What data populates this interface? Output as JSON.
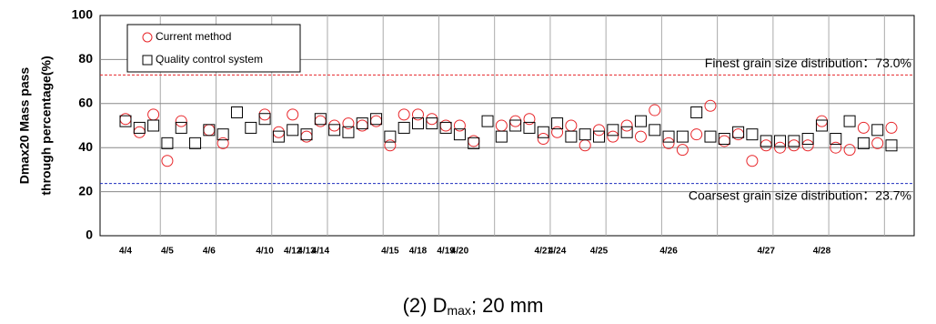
{
  "chart_data": {
    "type": "scatter",
    "y_label_lines": [
      "Dmax20 Mass pass",
      "through percentage(%)"
    ],
    "caption": {
      "prefix": "(2) D",
      "sub": "max",
      "suffix": "; 20 mm"
    },
    "categories": [
      "4/4",
      null,
      null,
      "4/5",
      null,
      null,
      "4/6",
      null,
      null,
      null,
      "4/10",
      null,
      "4/12",
      "4/13",
      "4/14",
      null,
      null,
      null,
      null,
      "4/15",
      null,
      "4/18",
      null,
      "4/19",
      "4/20",
      null,
      null,
      null,
      null,
      null,
      "4/21",
      "4/24",
      null,
      null,
      "4/25",
      null,
      null,
      null,
      null,
      "4/26",
      null,
      null,
      null,
      null,
      null,
      null,
      "4/27",
      null,
      null,
      null,
      "4/28",
      null,
      null,
      null,
      null,
      null
    ],
    "series": [
      {
        "name": "Current method",
        "marker": "circle",
        "color": "#e8262a",
        "values": [
          53,
          47,
          55,
          34,
          52,
          null,
          48,
          42,
          null,
          null,
          55,
          47,
          55,
          45,
          52,
          50,
          51,
          50,
          52,
          41,
          55,
          55,
          53,
          50,
          50,
          43,
          null,
          50,
          52,
          53,
          44,
          47,
          50,
          41,
          48,
          45,
          50,
          45,
          57,
          42,
          39,
          46,
          59,
          43,
          46,
          34,
          41,
          40,
          41,
          41,
          52,
          40,
          39,
          49,
          42,
          49
        ]
      },
      {
        "name": "Quality control system",
        "marker": "square",
        "color": "#000000",
        "values": [
          52,
          49,
          50,
          42,
          49,
          42,
          48,
          46,
          56,
          49,
          53,
          45,
          48,
          46,
          53,
          48,
          47,
          51,
          53,
          45,
          49,
          51,
          51,
          49,
          46,
          42,
          52,
          45,
          50,
          49,
          47,
          51,
          45,
          46,
          45,
          48,
          47,
          52,
          48,
          45,
          45,
          56,
          45,
          44,
          47,
          46,
          43,
          43,
          43,
          44,
          50,
          44,
          52,
          42,
          48,
          41
        ]
      }
    ],
    "annotations": [
      {
        "value": 73.0,
        "label": "Finest grain size distribution：73.0%",
        "color": "#e8262a"
      },
      {
        "value": 23.7,
        "label": "Coarsest grain size distribution：23.7%",
        "color": "#1f2fbf"
      }
    ],
    "ylim": [
      0,
      100
    ],
    "yticks": [
      0,
      20,
      40,
      60,
      80,
      100
    ],
    "grid": true,
    "legend": "upper left"
  }
}
